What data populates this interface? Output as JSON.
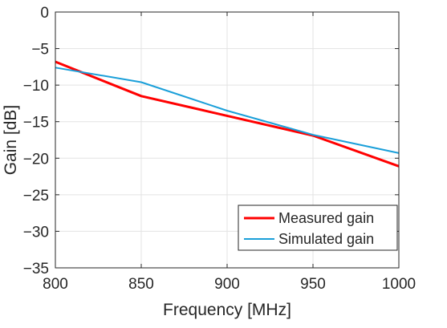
{
  "chart_data": {
    "type": "line",
    "title": "",
    "xlabel": "Frequency [MHz]",
    "ylabel": "Gain [dB]",
    "xlim": [
      800,
      1000
    ],
    "ylim": [
      -35,
      0
    ],
    "xticks": [
      800,
      850,
      900,
      950,
      1000
    ],
    "yticks": [
      0,
      -5,
      -10,
      -15,
      -20,
      -25,
      -30,
      -35
    ],
    "grid": true,
    "legend_position": "bottom-right",
    "series": [
      {
        "name": "Measured gain",
        "color": "#ff0000",
        "x": [
          800,
          850,
          900,
          950,
          1000
        ],
        "y": [
          -6.8,
          -11.5,
          -14.2,
          -16.9,
          -21.1
        ]
      },
      {
        "name": "Simulated gain",
        "color": "#1a9fd9",
        "x": [
          800,
          850,
          900,
          950,
          1000
        ],
        "y": [
          -7.6,
          -9.6,
          -13.5,
          -16.8,
          -19.3
        ]
      }
    ]
  }
}
